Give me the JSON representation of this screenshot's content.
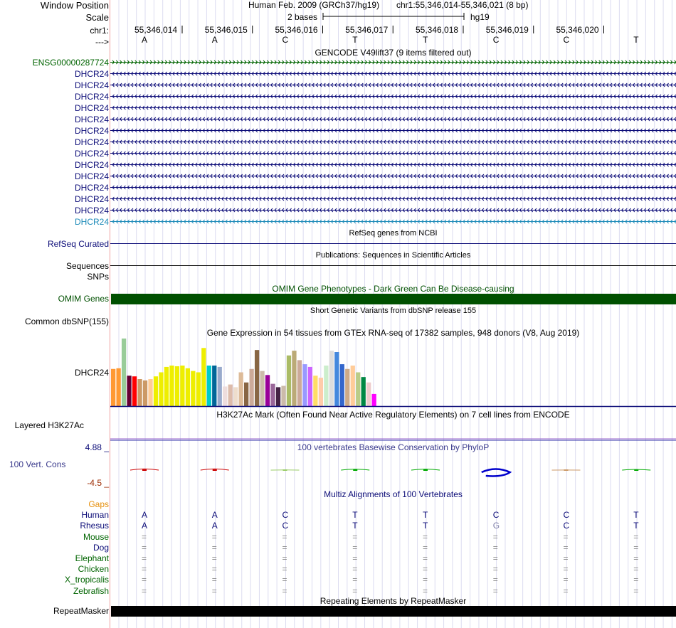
{
  "header": {
    "window_position_label": "Window Position",
    "assembly": "Human Feb. 2009 (GRCh37/hg19)",
    "position": "chr1:55,346,014-55,346,021 (8 bp)",
    "scale_label": "Scale",
    "scale_bar": "2 bases",
    "db": "hg19",
    "chrom_label": "chr1:",
    "strand_label": "--->"
  },
  "ruler": {
    "coords": [
      "55,346,014",
      "55,346,015",
      "55,346,016",
      "55,346,017",
      "55,346,018",
      "55,346,019",
      "55,346,020"
    ],
    "bases": [
      "A",
      "A",
      "C",
      "T",
      "T",
      "C",
      "C",
      "T"
    ]
  },
  "gencode": {
    "title": "GENCODE V49lift37 (9 items filtered out)",
    "items": [
      {
        "name": "ENSG00000287724",
        "color": "#006400",
        "dir": "forward"
      },
      {
        "name": "DHCR24",
        "color": "#0c0c78",
        "dir": "reverse"
      },
      {
        "name": "DHCR24",
        "color": "#0c0c78",
        "dir": "reverse"
      },
      {
        "name": "DHCR24",
        "color": "#0c0c78",
        "dir": "reverse"
      },
      {
        "name": "DHCR24",
        "color": "#0c0c78",
        "dir": "reverse"
      },
      {
        "name": "DHCR24",
        "color": "#0c0c78",
        "dir": "reverse"
      },
      {
        "name": "DHCR24",
        "color": "#0c0c78",
        "dir": "reverse"
      },
      {
        "name": "DHCR24",
        "color": "#0c0c78",
        "dir": "reverse"
      },
      {
        "name": "DHCR24",
        "color": "#0c0c78",
        "dir": "reverse"
      },
      {
        "name": "DHCR24",
        "color": "#0c0c78",
        "dir": "reverse"
      },
      {
        "name": "DHCR24",
        "color": "#0c0c78",
        "dir": "reverse"
      },
      {
        "name": "DHCR24",
        "color": "#0c0c78",
        "dir": "reverse"
      },
      {
        "name": "DHCR24",
        "color": "#0c0c78",
        "dir": "reverse"
      },
      {
        "name": "DHCR24",
        "color": "#0c0c78",
        "dir": "reverse"
      },
      {
        "name": "DHCR24",
        "color": "#1c8ab8",
        "dir": "reverse"
      }
    ]
  },
  "refseq": {
    "title": "RefSeq genes from NCBI",
    "label": "RefSeq Curated"
  },
  "publications": {
    "title": "Publications: Sequences in Scientific Articles",
    "label": "Sequences"
  },
  "snps": {
    "label": "SNPs"
  },
  "omim": {
    "title": "OMIM Gene Phenotypes - Dark Green Can Be Disease-causing",
    "label": "OMIM Genes",
    "color": "#005000"
  },
  "dbsnp": {
    "title": "Short Genetic Variants from dbSNP release 155",
    "label": "Common dbSNP(155)"
  },
  "gtex": {
    "title": "Gene Expression in 54 tissues from GTEx RNA-seq of 17382 samples, 948 donors (V8, Aug 2019)",
    "label": "DHCR24",
    "chart_data": {
      "type": "bar",
      "ylim": [
        0,
        100
      ],
      "values": [
        55,
        56,
        100,
        45,
        44,
        40,
        38,
        40,
        44,
        50,
        58,
        60,
        59,
        60,
        56,
        52,
        50,
        86,
        60,
        60,
        58,
        29,
        32,
        28,
        50,
        35,
        55,
        83,
        52,
        46,
        33,
        28,
        30,
        75,
        82,
        68,
        62,
        58,
        45,
        42,
        60,
        82,
        80,
        62,
        55,
        60,
        50,
        43,
        35,
        18
      ],
      "colors": [
        "#ff9933",
        "#ff9933",
        "#99cc99",
        "#660033",
        "#ff0000",
        "#cc9966",
        "#cc9966",
        "#ffcc99",
        "#eeee00",
        "#eeee00",
        "#eeee00",
        "#eeee00",
        "#eeee00",
        "#eeee00",
        "#eeee00",
        "#eeee00",
        "#eeee00",
        "#eeee00",
        "#00cccc",
        "#006699",
        "#99aacc",
        "#eedddd",
        "#ddbbaa",
        "#eeddcc",
        "#ddbb99",
        "#886644",
        "#ccaa99",
        "#886644",
        "#ccbbaa",
        "#990099",
        "#996699",
        "#442244",
        "#ccbbaa",
        "#aabb66",
        "#bbaa77",
        "#ccaa99",
        "#9999ff",
        "#cc66ff",
        "#ffdd66",
        "#ffccaa",
        "#cceecc",
        "#dddddd",
        "#4488dd",
        "#3366cc",
        "#ccaa88",
        "#ffcc99",
        "#bbcc88",
        "#008844",
        "#eecccc",
        "#ff00ff"
      ]
    }
  },
  "h3k27ac": {
    "title": "H3K27Ac Mark (Often Found Near Active Regulatory Elements) on 7 cell lines from ENCODE",
    "label": "Layered H3K27Ac"
  },
  "conservation": {
    "title": "100 vertebrates Basewise Conservation by PhyloP",
    "label": "100 Vert. Cons",
    "max_label": "4.88 _",
    "min_label": "-4.5 _",
    "values": [
      1.2,
      1.2,
      0.2,
      0.8,
      0.9,
      -3.5,
      0.1,
      0.6
    ],
    "colors": [
      "#cc0000",
      "#cc0000",
      "#99cc66",
      "#00aa00",
      "#00aa00",
      "#0000cc",
      "#cc9966",
      "#00aa00"
    ]
  },
  "multiz": {
    "title": "Multiz Alignments of 100 Vertebrates",
    "species": [
      {
        "name": "Gaps",
        "color": "#e6900e",
        "bases": []
      },
      {
        "name": "Human",
        "color": "#0c0c78",
        "bases": [
          "A",
          "A",
          "C",
          "T",
          "T",
          "C",
          "C",
          "T"
        ]
      },
      {
        "name": "Rhesus",
        "color": "#0c0c78",
        "bases": [
          "A",
          "A",
          "C",
          "T",
          "T",
          "G",
          "C",
          "T"
        ]
      },
      {
        "name": "Mouse",
        "color": "#006400",
        "bases": [
          "=",
          "=",
          "=",
          "=",
          "=",
          "=",
          "=",
          "="
        ]
      },
      {
        "name": "Dog",
        "color": "#0c0c78",
        "bases": [
          "=",
          "=",
          "=",
          "=",
          "=",
          "=",
          "=",
          "="
        ]
      },
      {
        "name": "Elephant",
        "color": "#006400",
        "bases": [
          "=",
          "=",
          "=",
          "=",
          "=",
          "=",
          "=",
          "="
        ]
      },
      {
        "name": "Chicken",
        "color": "#006400",
        "bases": [
          "=",
          "=",
          "=",
          "=",
          "=",
          "=",
          "=",
          "="
        ]
      },
      {
        "name": "X_tropicalis",
        "color": "#006400",
        "bases": [
          "=",
          "=",
          "=",
          "=",
          "=",
          "=",
          "=",
          "="
        ]
      },
      {
        "name": "Zebrafish",
        "color": "#006400",
        "bases": [
          "=",
          "=",
          "=",
          "=",
          "=",
          "=",
          "=",
          "="
        ]
      }
    ]
  },
  "repeatmasker": {
    "title": "Repeating Elements by RepeatMasker",
    "label": "RepeatMasker"
  }
}
